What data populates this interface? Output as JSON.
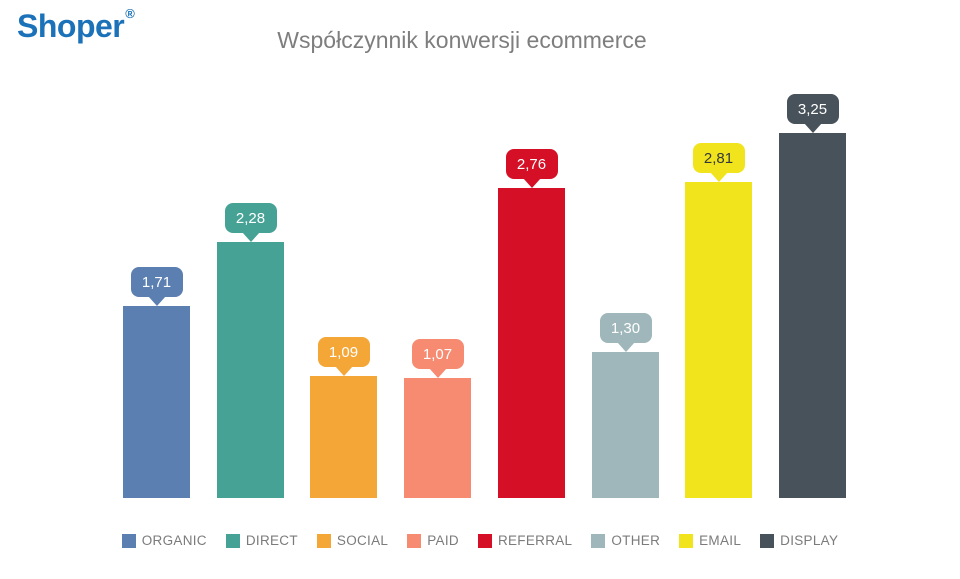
{
  "logo": {
    "text": "Shoper",
    "registered_mark": "®",
    "color": "#1B72B8"
  },
  "title": {
    "text": "Współczynnik konwersji ecommerce",
    "color": "#7E7E7E"
  },
  "chart_data": {
    "type": "bar",
    "title": "Współczynnik konwersji ecommerce",
    "categories": [
      "ORGANIC",
      "DIRECT",
      "SOCIAL",
      "PAID",
      "REFERRAL",
      "OTHER",
      "EMAIL",
      "DISPLAY"
    ],
    "values": [
      1.71,
      2.28,
      1.09,
      1.07,
      2.76,
      1.3,
      2.81,
      3.25
    ],
    "value_labels": [
      "1,71",
      "2,28",
      "1,09",
      "1,07",
      "2,76",
      "1,30",
      "2,81",
      "3,25"
    ],
    "colors": [
      "#5C7FB2",
      "#47A296",
      "#F4A637",
      "#F68B72",
      "#D50F25",
      "#9FB7BA",
      "#F2E41C",
      "#47525A"
    ],
    "callout_text_colors": [
      "#FFFFFF",
      "#FFFFFF",
      "#FFFFFF",
      "#FFFFFF",
      "#FFFFFF",
      "#FFFFFF",
      "#33383C",
      "#FFFFFF"
    ],
    "decimal_separator": ",",
    "xlabel": "",
    "ylabel": "",
    "ylim": [
      0,
      3.6
    ],
    "grid": false,
    "axes_visible": false,
    "data_label_style": "speech-bubble-callout",
    "legend_position": "bottom",
    "legend_text_color": "#7B7B7B"
  }
}
